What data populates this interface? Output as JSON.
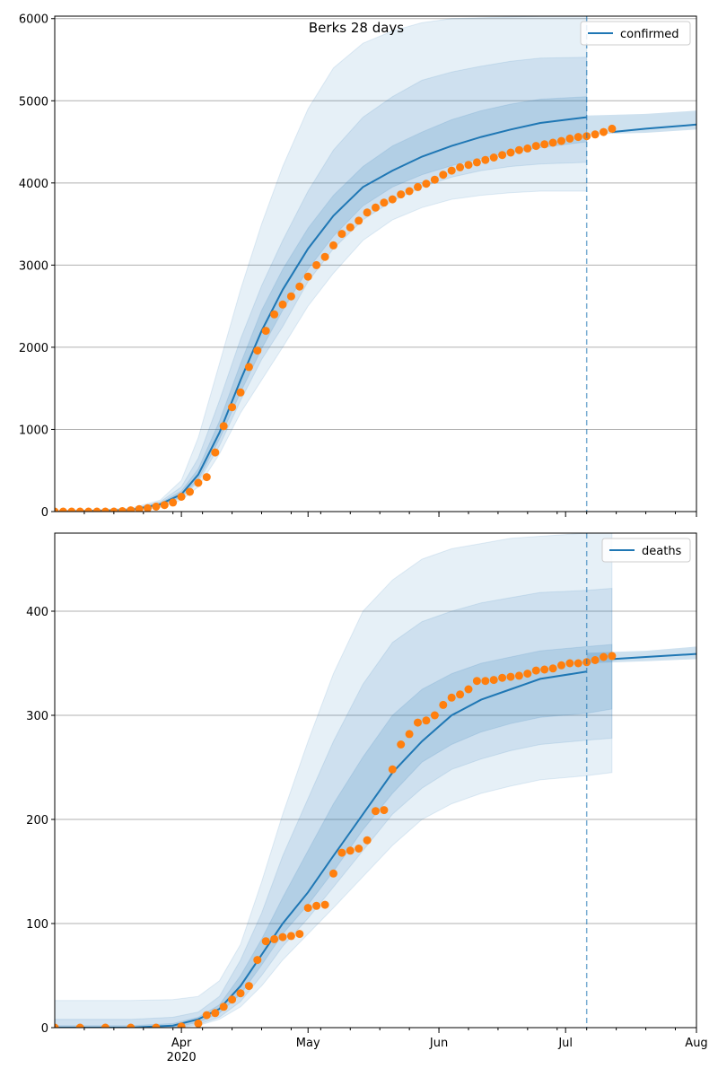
{
  "title": "Berks 28 days",
  "colors": {
    "model_line": "#1f77b4",
    "observed": "#ff7f0e",
    "band": "#1f77b4",
    "grid": "#b0b0b0",
    "cutoff": "#1f77b4"
  },
  "chart_data": [
    {
      "type": "line",
      "title": "Berks 28 days",
      "legend": {
        "label": "confirmed",
        "placement": "top-right"
      },
      "xlim": [
        "2020-03-02",
        "2020-08-01"
      ],
      "ylim": [
        0,
        6030
      ],
      "yticks": [
        0,
        1000,
        2000,
        3000,
        4000,
        5000,
        6000
      ],
      "ytick_labels": [
        "0",
        "1000",
        "2000",
        "3000",
        "4000",
        "5000",
        "6000"
      ],
      "grid": "horizontal",
      "forecast_start": "2020-07-06",
      "model_median": {
        "x": [
          "2020-03-02",
          "2020-03-20",
          "2020-03-27",
          "2020-04-01",
          "2020-04-05",
          "2020-04-10",
          "2020-04-15",
          "2020-04-20",
          "2020-04-25",
          "2020-05-01",
          "2020-05-07",
          "2020-05-14",
          "2020-05-21",
          "2020-05-28",
          "2020-06-04",
          "2020-06-11",
          "2020-06-18",
          "2020-06-25",
          "2020-07-06",
          "2020-07-12",
          "2020-07-20",
          "2020-08-01"
        ],
        "y": [
          0,
          20,
          90,
          210,
          450,
          960,
          1600,
          2200,
          2700,
          3200,
          3600,
          3950,
          4150,
          4320,
          4450,
          4560,
          4650,
          4730,
          4800,
          4620,
          4660,
          4710
        ]
      },
      "uncertainty_bands": [
        {
          "level": "outer",
          "upper": [
            0,
            40,
            140,
            380,
            900,
            1800,
            2700,
            3500,
            4200,
            4900,
            5400,
            5700,
            5850,
            5950,
            6000,
            6010,
            6020,
            6030,
            6030
          ],
          "lower": [
            0,
            8,
            50,
            140,
            300,
            700,
            1200,
            1600,
            2000,
            2500,
            2900,
            3300,
            3550,
            3700,
            3800,
            3850,
            3880,
            3900,
            3900
          ]
        },
        {
          "level": "middle",
          "upper": [
            0,
            30,
            120,
            300,
            650,
            1350,
            2100,
            2750,
            3300,
            3900,
            4400,
            4800,
            5050,
            5250,
            5350,
            5420,
            5480,
            5520,
            5530
          ],
          "lower": [
            0,
            12,
            65,
            170,
            360,
            800,
            1350,
            1850,
            2250,
            2800,
            3200,
            3550,
            3780,
            3950,
            4070,
            4150,
            4200,
            4230,
            4250
          ]
        },
        {
          "level": "inner",
          "upper": [
            0,
            25,
            105,
            250,
            520,
            1100,
            1800,
            2450,
            2950,
            3450,
            3850,
            4200,
            4450,
            4620,
            4770,
            4880,
            4960,
            5020,
            5050
          ],
          "lower": [
            0,
            15,
            75,
            180,
            390,
            880,
            1450,
            1980,
            2450,
            2950,
            3350,
            3720,
            3950,
            4100,
            4210,
            4300,
            4370,
            4430,
            4500
          ]
        }
      ],
      "band_extension": {
        "upper": [
          4820,
          4840,
          4880
        ],
        "lower": [
          4590,
          4610,
          4650
        ]
      },
      "observed": {
        "x": [
          "2020-03-02",
          "2020-03-04",
          "2020-03-06",
          "2020-03-08",
          "2020-03-10",
          "2020-03-12",
          "2020-03-14",
          "2020-03-16",
          "2020-03-18",
          "2020-03-20",
          "2020-03-22",
          "2020-03-24",
          "2020-03-26",
          "2020-03-28",
          "2020-03-30",
          "2020-04-01",
          "2020-04-03",
          "2020-04-05",
          "2020-04-07",
          "2020-04-09",
          "2020-04-11",
          "2020-04-13",
          "2020-04-15",
          "2020-04-17",
          "2020-04-19",
          "2020-04-21",
          "2020-04-23",
          "2020-04-25",
          "2020-04-27",
          "2020-04-29",
          "2020-05-01",
          "2020-05-03",
          "2020-05-05",
          "2020-05-07",
          "2020-05-09",
          "2020-05-11",
          "2020-05-13",
          "2020-05-15",
          "2020-05-17",
          "2020-05-19",
          "2020-05-21",
          "2020-05-23",
          "2020-05-25",
          "2020-05-27",
          "2020-05-29",
          "2020-05-31",
          "2020-06-02",
          "2020-06-04",
          "2020-06-06",
          "2020-06-08",
          "2020-06-10",
          "2020-06-12",
          "2020-06-14",
          "2020-06-16",
          "2020-06-18",
          "2020-06-20",
          "2020-06-22",
          "2020-06-24",
          "2020-06-26",
          "2020-06-28",
          "2020-06-30",
          "2020-07-02",
          "2020-07-04",
          "2020-07-06",
          "2020-07-08",
          "2020-07-10",
          "2020-07-12"
        ],
        "y": [
          0,
          0,
          0,
          0,
          0,
          0,
          0,
          0,
          5,
          15,
          30,
          40,
          60,
          80,
          110,
          180,
          240,
          350,
          420,
          720,
          1040,
          1270,
          1450,
          1760,
          1960,
          2200,
          2400,
          2520,
          2620,
          2740,
          2860,
          3000,
          3100,
          3240,
          3380,
          3460,
          3540,
          3640,
          3700,
          3760,
          3800,
          3860,
          3900,
          3950,
          3990,
          4040,
          4100,
          4150,
          4190,
          4220,
          4250,
          4280,
          4310,
          4340,
          4370,
          4400,
          4420,
          4450,
          4470,
          4490,
          4510,
          4540,
          4560,
          4570,
          4590,
          4620,
          4660
        ]
      }
    },
    {
      "type": "line",
      "legend": {
        "label": "deaths",
        "placement": "top-right"
      },
      "xlim": [
        "2020-03-02",
        "2020-08-01"
      ],
      "ylim": [
        0,
        475
      ],
      "yticks": [
        0,
        100,
        200,
        300,
        400
      ],
      "ytick_labels": [
        "0",
        "100",
        "200",
        "300",
        "400"
      ],
      "xticks": [
        "2020-04-01",
        "2020-05-01",
        "2020-06-01",
        "2020-07-01",
        "2020-08-01"
      ],
      "xtick_labels": [
        "Apr",
        "May",
        "Jun",
        "Jul",
        "Aug"
      ],
      "xtick_year_label": "2020",
      "grid": "horizontal",
      "forecast_start": "2020-07-06",
      "model_median": {
        "x": [
          "2020-03-02",
          "2020-03-20",
          "2020-03-30",
          "2020-04-05",
          "2020-04-10",
          "2020-04-15",
          "2020-04-20",
          "2020-04-25",
          "2020-05-01",
          "2020-05-07",
          "2020-05-14",
          "2020-05-21",
          "2020-05-28",
          "2020-06-04",
          "2020-06-11",
          "2020-06-18",
          "2020-06-25",
          "2020-07-06",
          "2020-07-12",
          "2020-07-20",
          "2020-08-01"
        ],
        "y": [
          0,
          0,
          2,
          8,
          18,
          40,
          70,
          100,
          130,
          165,
          205,
          245,
          275,
          300,
          315,
          325,
          335,
          342,
          354,
          356,
          359
        ]
      },
      "uncertainty_bands": [
        {
          "level": "outer",
          "upper": [
            26,
            26,
            27,
            30,
            45,
            80,
            140,
            205,
            275,
            340,
            400,
            430,
            450,
            460,
            465,
            470,
            472,
            475,
            475
          ],
          "lower": [
            0,
            0,
            0,
            2,
            8,
            20,
            40,
            65,
            90,
            115,
            145,
            175,
            200,
            215,
            225,
            232,
            238,
            242,
            245
          ]
        },
        {
          "level": "middle",
          "upper": [
            8,
            8,
            10,
            15,
            30,
            65,
            110,
            165,
            220,
            275,
            330,
            370,
            390,
            400,
            408,
            413,
            418,
            420,
            422
          ],
          "lower": [
            0,
            0,
            0,
            3,
            10,
            25,
            50,
            78,
            105,
            135,
            170,
            205,
            230,
            248,
            258,
            266,
            272,
            276,
            278
          ]
        },
        {
          "level": "inner",
          "upper": [
            2,
            2,
            4,
            10,
            22,
            50,
            85,
            125,
            170,
            215,
            260,
            300,
            325,
            340,
            350,
            356,
            362,
            366,
            368
          ],
          "lower": [
            0,
            0,
            0,
            5,
            14,
            32,
            60,
            90,
            118,
            150,
            190,
            225,
            255,
            272,
            284,
            292,
            298,
            302,
            306
          ]
        }
      ],
      "band_extension": {
        "upper": [
          360,
          362,
          366
        ],
        "lower": [
          350,
          352,
          354
        ]
      },
      "observed": {
        "x": [
          "2020-03-02",
          "2020-03-08",
          "2020-03-14",
          "2020-03-20",
          "2020-03-26",
          "2020-04-01",
          "2020-04-05",
          "2020-04-07",
          "2020-04-09",
          "2020-04-11",
          "2020-04-13",
          "2020-04-15",
          "2020-04-17",
          "2020-04-19",
          "2020-04-21",
          "2020-04-23",
          "2020-04-25",
          "2020-04-27",
          "2020-04-29",
          "2020-05-01",
          "2020-05-03",
          "2020-05-05",
          "2020-05-07",
          "2020-05-09",
          "2020-05-11",
          "2020-05-13",
          "2020-05-15",
          "2020-05-17",
          "2020-05-19",
          "2020-05-21",
          "2020-05-23",
          "2020-05-25",
          "2020-05-27",
          "2020-05-29",
          "2020-05-31",
          "2020-06-02",
          "2020-06-04",
          "2020-06-06",
          "2020-06-08",
          "2020-06-10",
          "2020-06-12",
          "2020-06-14",
          "2020-06-16",
          "2020-06-18",
          "2020-06-20",
          "2020-06-22",
          "2020-06-24",
          "2020-06-26",
          "2020-06-28",
          "2020-06-30",
          "2020-07-02",
          "2020-07-04",
          "2020-07-06",
          "2020-07-08",
          "2020-07-10",
          "2020-07-12"
        ],
        "y": [
          0,
          0,
          0,
          0,
          0,
          1,
          4,
          12,
          14,
          20,
          27,
          33,
          40,
          65,
          83,
          85,
          87,
          88,
          90,
          115,
          117,
          118,
          148,
          168,
          170,
          172,
          180,
          208,
          209,
          248,
          272,
          282,
          293,
          295,
          300,
          310,
          317,
          320,
          325,
          333,
          333,
          334,
          336,
          337,
          338,
          340,
          343,
          344,
          345,
          348,
          350,
          350,
          351,
          353,
          356,
          357
        ]
      }
    }
  ]
}
